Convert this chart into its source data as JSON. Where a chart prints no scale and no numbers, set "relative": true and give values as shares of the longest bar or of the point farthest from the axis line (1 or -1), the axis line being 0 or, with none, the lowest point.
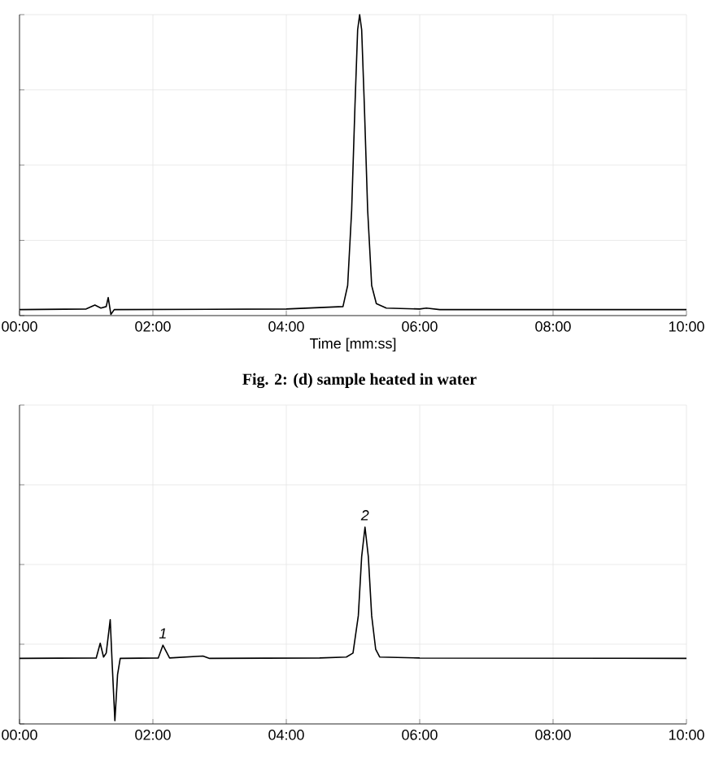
{
  "chart_data": [
    {
      "type": "line",
      "xlabel": "Time [mm:ss]",
      "relative": true,
      "grid": true,
      "color": "#000000",
      "xlim": [
        0,
        10
      ],
      "xticks": [
        {
          "value": 0,
          "label": "00:00"
        },
        {
          "value": 2,
          "label": "02:00"
        },
        {
          "value": 4,
          "label": "04:00"
        },
        {
          "value": 6,
          "label": "06:00"
        },
        {
          "value": 8,
          "label": "08:00"
        },
        {
          "value": 10,
          "label": "10:00"
        }
      ],
      "x": [
        0,
        1.0,
        1.13,
        1.22,
        1.3,
        1.33,
        1.37,
        1.42,
        4.0,
        4.85,
        4.92,
        4.98,
        5.03,
        5.07,
        5.1,
        5.13,
        5.17,
        5.22,
        5.28,
        5.35,
        5.5,
        6.0,
        6.1,
        6.3,
        10
      ],
      "values": [
        0.02,
        0.022,
        0.035,
        0.025,
        0.03,
        0.06,
        0.004,
        0.02,
        0.022,
        0.03,
        0.1,
        0.35,
        0.7,
        0.95,
        1,
        0.95,
        0.7,
        0.35,
        0.1,
        0.04,
        0.025,
        0.022,
        0.025,
        0.02,
        0.02
      ],
      "annotations": [
        "Fig. 2: (d) sample heated in water"
      ]
    },
    {
      "type": "line",
      "relative": true,
      "grid": true,
      "color": "#000000",
      "xlim": [
        0,
        10
      ],
      "xticks": [
        {
          "value": 0,
          "label": "00:00"
        },
        {
          "value": 2,
          "label": "02:00"
        },
        {
          "value": 4,
          "label": "04:00"
        },
        {
          "value": 6,
          "label": "06:00"
        },
        {
          "value": 8,
          "label": "08:00"
        },
        {
          "value": 10,
          "label": "10:00"
        }
      ],
      "x": [
        0,
        1.15,
        1.21,
        1.26,
        1.3,
        1.36,
        1.39,
        1.43,
        1.47,
        1.51,
        2.08,
        2.15,
        2.25,
        2.75,
        2.85,
        4.5,
        4.9,
        5.0,
        5.08,
        5.13,
        5.18,
        5.23,
        5.28,
        5.34,
        5.4,
        6.0,
        10
      ],
      "values": [
        0.333,
        0.335,
        0.41,
        0.34,
        0.36,
        0.53,
        0.3,
        0.017,
        0.25,
        0.333,
        0.335,
        0.4,
        0.335,
        0.345,
        0.333,
        0.335,
        0.34,
        0.36,
        0.55,
        0.85,
        1,
        0.85,
        0.55,
        0.38,
        0.34,
        0.335,
        0.333
      ],
      "annotations": [
        {
          "text": "1",
          "x": 2.15,
          "y": 0.4
        },
        {
          "text": "2",
          "x": 5.18,
          "y": 1
        }
      ]
    }
  ]
}
